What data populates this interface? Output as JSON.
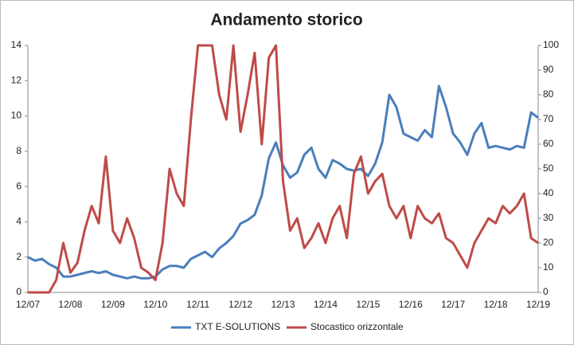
{
  "chart_data": {
    "type": "line",
    "title": "Andamento storico",
    "categories": [
      "12/07",
      null,
      null,
      null,
      null,
      null,
      "12/08",
      null,
      null,
      null,
      null,
      null,
      "12/09",
      null,
      null,
      null,
      null,
      null,
      "12/10",
      null,
      null,
      null,
      null,
      null,
      "12/11",
      null,
      null,
      null,
      null,
      null,
      "12/12",
      null,
      null,
      null,
      null,
      null,
      "12/13",
      null,
      null,
      null,
      null,
      null,
      "12/14",
      null,
      null,
      null,
      null,
      null,
      "12/15",
      null,
      null,
      null,
      null,
      null,
      "12/16",
      null,
      null,
      null,
      null,
      null,
      "12/17",
      null,
      null,
      null,
      null,
      null,
      "12/18",
      null,
      null,
      null,
      null,
      null,
      "12/19"
    ],
    "series": [
      {
        "name": "TXT E-SOLUTIONS",
        "color": "#4a7ebb",
        "axis": "y",
        "values": [
          2.0,
          1.8,
          1.9,
          1.6,
          1.4,
          0.9,
          0.9,
          1.0,
          1.1,
          1.2,
          1.1,
          1.2,
          1.0,
          0.9,
          0.8,
          0.9,
          0.8,
          0.8,
          0.9,
          1.3,
          1.5,
          1.5,
          1.4,
          1.9,
          2.1,
          2.3,
          2.0,
          2.5,
          2.8,
          3.2,
          3.9,
          4.1,
          4.4,
          5.5,
          7.6,
          8.5,
          7.2,
          6.5,
          6.8,
          7.8,
          8.2,
          7.0,
          6.5,
          7.5,
          7.3,
          7.0,
          6.9,
          7.0,
          6.6,
          7.3,
          8.5,
          11.2,
          10.5,
          9.0,
          8.8,
          8.6,
          9.2,
          8.8,
          11.7,
          10.5,
          9.0,
          8.5,
          7.8,
          9.0,
          9.6,
          8.2,
          8.3,
          8.2,
          8.1,
          8.3,
          8.2,
          10.2,
          9.9
        ]
      },
      {
        "name": "Stocastico orizzontale",
        "color": "#be4b48",
        "axis": "y2",
        "values": [
          0,
          0,
          0,
          0,
          5,
          20,
          8,
          12,
          25,
          35,
          28,
          55,
          25,
          20,
          30,
          22,
          10,
          8,
          5,
          20,
          50,
          40,
          35,
          70,
          100,
          100,
          100,
          80,
          70,
          100,
          65,
          80,
          97,
          60,
          95,
          100,
          45,
          25,
          30,
          18,
          22,
          28,
          20,
          30,
          35,
          22,
          48,
          55,
          40,
          45,
          48,
          35,
          30,
          35,
          22,
          35,
          30,
          28,
          32,
          22,
          20,
          15,
          10,
          20,
          25,
          30,
          28,
          35,
          32,
          35,
          40,
          22,
          20
        ]
      }
    ],
    "ylim": [
      0,
      14
    ],
    "yticks": [
      0,
      2,
      4,
      6,
      8,
      10,
      12,
      14
    ],
    "y2lim": [
      0,
      100
    ],
    "y2ticks": [
      0,
      10,
      20,
      30,
      40,
      50,
      60,
      70,
      80,
      90,
      100
    ],
    "grid": false,
    "legend": "bottom"
  }
}
